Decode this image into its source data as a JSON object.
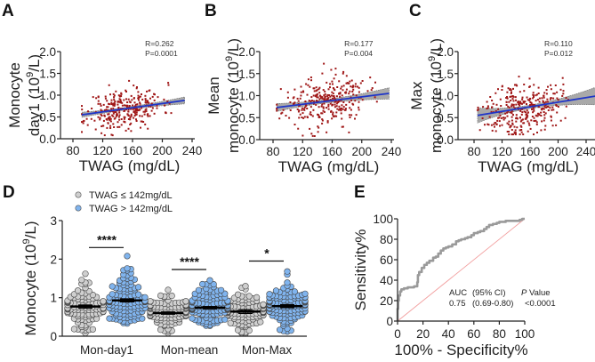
{
  "chart_data": [
    {
      "panel": "A",
      "type": "scatter",
      "title": "",
      "xlabel": "TWAG (mg/dL)",
      "ylabel_line1": "Monocyte",
      "ylabel_line2": "day1 (10",
      "ylabel_sup": "9",
      "ylabel_tail": "/L)",
      "xlim": [
        70,
        250
      ],
      "ylim": [
        0,
        2.0
      ],
      "xticks": [
        80,
        120,
        160,
        200,
        240
      ],
      "yticks": [
        "0.0",
        "0.5",
        "1.0",
        "1.5",
        "2.0"
      ],
      "ytick_values": [
        0,
        0.5,
        1.0,
        1.5,
        2.0
      ],
      "annotation": [
        "R=0.262",
        "P=0.0001"
      ],
      "regression": {
        "x_start": 92,
        "x_end": 230,
        "y_start": 0.55,
        "y_end": 0.88,
        "band_start": 0.06,
        "band_mid": 0.03,
        "band_end": 0.08
      },
      "points": {
        "n": 300,
        "x_range": [
          92,
          230
        ],
        "x_center": 150,
        "x_sd": 25,
        "y_sd": 0.23,
        "y_min": 0.08,
        "y_max": 1.45,
        "seed": 11
      },
      "colors": {
        "points": "#a01818",
        "line": "#1f35c8",
        "band": "#9a9a9a"
      }
    },
    {
      "panel": "B",
      "type": "scatter",
      "xlabel": "TWAG (mg/dL)",
      "ylabel_line1": "Mean",
      "ylabel_line2": "monocyte (10",
      "ylabel_sup": "9",
      "ylabel_tail": "/L)",
      "xlim": [
        70,
        250
      ],
      "ylim": [
        0,
        2.0
      ],
      "xticks": [
        80,
        120,
        160,
        200,
        240
      ],
      "yticks": [
        "0.0",
        "0.5",
        "1.0",
        "1.5",
        "2.0"
      ],
      "ytick_values": [
        0,
        0.5,
        1.0,
        1.5,
        2.0
      ],
      "annotation": [
        "R=0.177",
        "P=0.004"
      ],
      "regression": {
        "x_start": 85,
        "x_end": 237,
        "y_start": 0.73,
        "y_end": 1.05,
        "band_start": 0.09,
        "band_mid": 0.04,
        "band_end": 0.13
      },
      "points": {
        "n": 300,
        "x_range": [
          85,
          237
        ],
        "x_center": 150,
        "x_sd": 28,
        "y_sd": 0.28,
        "y_min": 0.08,
        "y_max": 1.9,
        "seed": 23
      },
      "colors": {
        "points": "#a01818",
        "line": "#1f35c8",
        "band": "#9a9a9a"
      }
    },
    {
      "panel": "C",
      "type": "scatter",
      "xlabel": "TWAG (mg/dL)",
      "ylabel_line1": "Max",
      "ylabel_line2": "monocyte (10",
      "ylabel_sup": "9",
      "ylabel_tail": "/L)",
      "xlim": [
        70,
        265
      ],
      "ylim": [
        0,
        2.0
      ],
      "xticks": [
        80,
        120,
        160,
        200,
        240
      ],
      "yticks": [
        "0.0",
        "0.5",
        "1.0",
        "1.5",
        "2.0"
      ],
      "ytick_values": [
        0,
        0.5,
        1.0,
        1.5,
        2.0
      ],
      "annotation": [
        "R=0.110",
        "P=0.012"
      ],
      "regression": {
        "x_start": 85,
        "x_end": 265,
        "y_start": 0.55,
        "y_end": 1.02,
        "band_start": 0.17,
        "band_mid": 0.04,
        "band_end": 0.24
      },
      "points": {
        "n": 320,
        "x_range": [
          85,
          240
        ],
        "x_center": 150,
        "x_sd": 27,
        "y_sd": 0.3,
        "y_min": 0.12,
        "y_max": 1.65,
        "seed": 37
      },
      "colors": {
        "points": "#a01818",
        "line": "#1f35c8",
        "band": "#9a9a9a"
      }
    },
    {
      "panel": "D",
      "type": "scatter",
      "subtype": "dot-plot",
      "ylabel": "Monocyte (10",
      "ylabel_sup": "9",
      "ylabel_tail": "/L)",
      "ylim": [
        0,
        3
      ],
      "yticks": [
        "0",
        "1",
        "2",
        "3"
      ],
      "ytick_values": [
        0,
        1,
        2,
        3
      ],
      "categories": [
        "Mon-day1",
        "Mon-mean",
        "Mon-Max"
      ],
      "legend": [
        {
          "label": "TWAG ≤ 142mg/dL",
          "color": "#cfcfcf"
        },
        {
          "label": "TWAG > 142mg/dL",
          "color": "#80b4ee"
        }
      ],
      "series": [
        {
          "name": "TWAG ≤ 142mg/dL",
          "means": [
            0.77,
            0.6,
            0.64
          ],
          "sem": [
            0.04,
            0.03,
            0.05
          ],
          "ranges": [
            [
              0.08,
              1.62
            ],
            [
              0.08,
              1.2
            ],
            [
              0.07,
              1.3
            ]
          ],
          "n": 110
        },
        {
          "name": "TWAG > 142mg/dL",
          "means": [
            0.93,
            0.74,
            0.78
          ],
          "sem": [
            0.04,
            0.03,
            0.04
          ],
          "ranges": [
            [
              0.33,
              2.08
            ],
            [
              0.27,
              1.45
            ],
            [
              0.12,
              1.68
            ]
          ],
          "n": 120
        }
      ],
      "significance": [
        {
          "category": "Mon-day1",
          "label": "****",
          "y": 2.3
        },
        {
          "category": "Mon-mean",
          "label": "****",
          "y": 1.73
        },
        {
          "category": "Mon-Max",
          "label": "*",
          "y": 1.95
        }
      ]
    },
    {
      "panel": "E",
      "type": "line",
      "subtype": "roc",
      "xlabel": "100% - Specificity%",
      "ylabel": "Sensitivity%",
      "xlim": [
        0,
        100
      ],
      "ylim": [
        0,
        100
      ],
      "xticks": [
        0,
        20,
        40,
        60,
        80,
        100
      ],
      "yticks": [
        0,
        20,
        40,
        60,
        80,
        100
      ],
      "annotation": {
        "col1_header": "AUC",
        "col2_header": "(95% CI)",
        "col3_header_italic": "P",
        "col3_header_rest": " Value",
        "auc": "0.75",
        "ci": "(0.69-0.80)",
        "p": "<0.0001"
      },
      "x": [
        0,
        0,
        0.5,
        1,
        2,
        3,
        5,
        8,
        10,
        13,
        15,
        15.5,
        16,
        17,
        19,
        21,
        23,
        25,
        28,
        30,
        32,
        34,
        36,
        38,
        40,
        43,
        46,
        48,
        50,
        53,
        55,
        58,
        60,
        63,
        65,
        68,
        70,
        72,
        75,
        78,
        80,
        85,
        90,
        93,
        96,
        98,
        100
      ],
      "y": [
        0,
        12,
        20,
        25,
        29,
        31,
        32,
        33,
        33,
        34,
        34,
        38,
        45,
        48,
        52,
        55,
        57,
        59,
        62,
        63,
        66,
        69,
        71,
        72,
        73,
        75,
        78,
        79,
        80,
        81,
        82,
        84,
        86,
        87,
        88,
        90,
        92,
        94,
        95,
        96,
        97,
        98,
        98,
        98,
        99,
        100,
        100
      ],
      "reference_line": {
        "x": [
          0,
          100
        ],
        "y": [
          0,
          100
        ]
      },
      "colors": {
        "curve": "#9a9a9a",
        "reference": "#f2a0a0"
      }
    }
  ],
  "panel_letters": [
    "A",
    "B",
    "C",
    "D",
    "E"
  ]
}
